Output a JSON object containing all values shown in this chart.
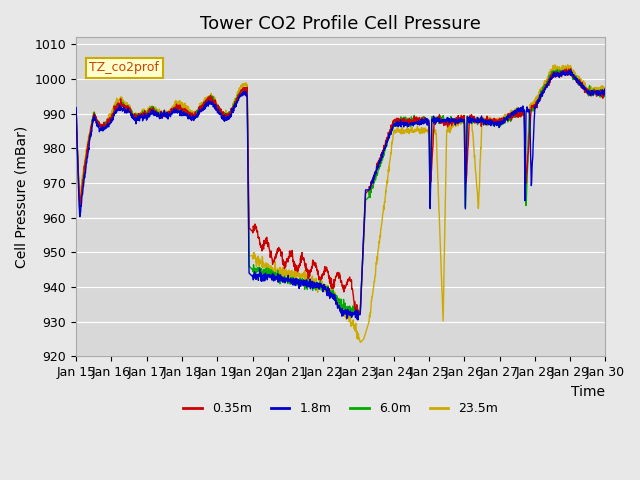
{
  "title": "Tower CO2 Profile Cell Pressure",
  "xlabel": "Time",
  "ylabel": "Cell Pressure (mBar)",
  "ylim": [
    920,
    1012
  ],
  "yticks": [
    920,
    930,
    940,
    950,
    960,
    970,
    980,
    990,
    1000,
    1010
  ],
  "x_labels": [
    "Jan 15",
    "Jan 16",
    "Jan 17",
    "Jan 18",
    "Jan 19",
    "Jan 20",
    "Jan 21",
    "Jan 22",
    "Jan 23",
    "Jan 24",
    "Jan 25",
    "Jan 26",
    "Jan 27",
    "Jan 28",
    "Jan 29",
    "Jan 30"
  ],
  "legend_label": "TZ_co2prof",
  "series_labels": [
    "0.35m",
    "1.8m",
    "6.0m",
    "23.5m"
  ],
  "series_colors": [
    "#cc0000",
    "#0000cc",
    "#00aa00",
    "#ccaa00"
  ],
  "background_color": "#e8e8e8",
  "plot_bg_color": "#d8d8d8",
  "title_fontsize": 13,
  "axis_fontsize": 10,
  "tick_fontsize": 9
}
